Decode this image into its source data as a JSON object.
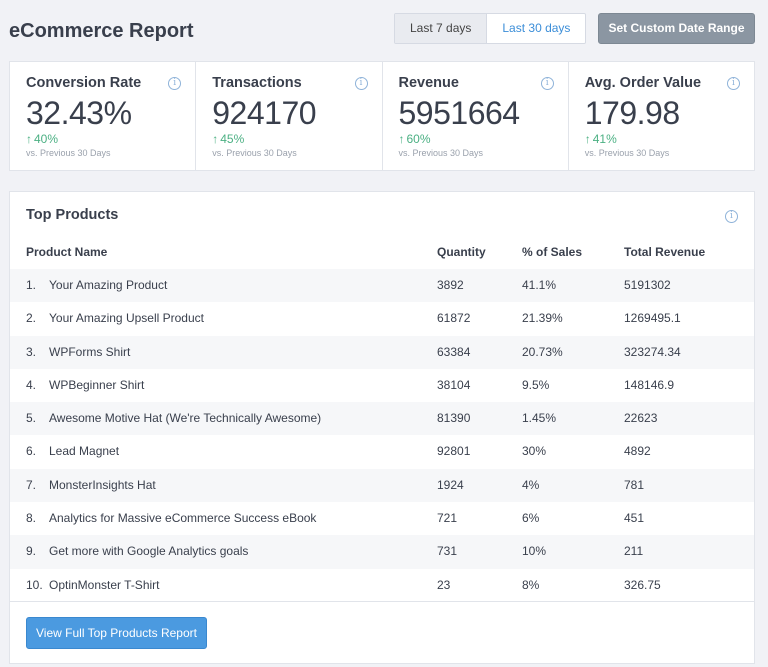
{
  "header": {
    "title": "eCommerce Report",
    "ranges": [
      "Last 7 days",
      "Last 30 days"
    ],
    "active_range": "Last 30 days",
    "custom_range_label": "Set Custom Date Range"
  },
  "kpis": [
    {
      "label": "Conversion Rate",
      "value": "32.43%",
      "change": "40%",
      "compare": "vs. Previous 30 Days"
    },
    {
      "label": "Transactions",
      "value": "924170",
      "change": "45%",
      "compare": "vs. Previous 30 Days"
    },
    {
      "label": "Revenue",
      "value": "5951664",
      "change": "60%",
      "compare": "vs. Previous 30 Days"
    },
    {
      "label": "Avg. Order Value",
      "value": "179.98",
      "change": "41%",
      "compare": "vs. Previous 30 Days"
    }
  ],
  "products": {
    "title": "Top Products",
    "columns": [
      "Product Name",
      "Quantity",
      "% of Sales",
      "Total Revenue"
    ],
    "rows": [
      {
        "num": "1.",
        "name": "Your Amazing Product",
        "qty": "3892",
        "pct": "41.1%",
        "rev": "5191302"
      },
      {
        "num": "2.",
        "name": "Your Amazing Upsell Product",
        "qty": "61872",
        "pct": "21.39%",
        "rev": "1269495.1"
      },
      {
        "num": "3.",
        "name": "WPForms Shirt",
        "qty": "63384",
        "pct": "20.73%",
        "rev": "323274.34"
      },
      {
        "num": "4.",
        "name": "WPBeginner Shirt",
        "qty": "38104",
        "pct": "9.5%",
        "rev": "148146.9"
      },
      {
        "num": "5.",
        "name": "Awesome Motive Hat (We're Technically Awesome)",
        "qty": "81390",
        "pct": "1.45%",
        "rev": "22623"
      },
      {
        "num": "6.",
        "name": "Lead Magnet",
        "qty": "92801",
        "pct": "30%",
        "rev": "4892"
      },
      {
        "num": "7.",
        "name": "MonsterInsights Hat",
        "qty": "1924",
        "pct": "4%",
        "rev": "781"
      },
      {
        "num": "8.",
        "name": "Analytics for Massive eCommerce Success eBook",
        "qty": "721",
        "pct": "6%",
        "rev": "451"
      },
      {
        "num": "9.",
        "name": "Get more with Google Analytics goals",
        "qty": "731",
        "pct": "10%",
        "rev": "211"
      },
      {
        "num": "10.",
        "name": "OptinMonster T-Shirt",
        "qty": "23",
        "pct": "8%",
        "rev": "326.75"
      }
    ],
    "view_full_label": "View Full Top Products Report"
  },
  "colors": {
    "accent": "#3c8ed8",
    "positive": "#4bb083",
    "button_gray": "#8b96a2"
  }
}
